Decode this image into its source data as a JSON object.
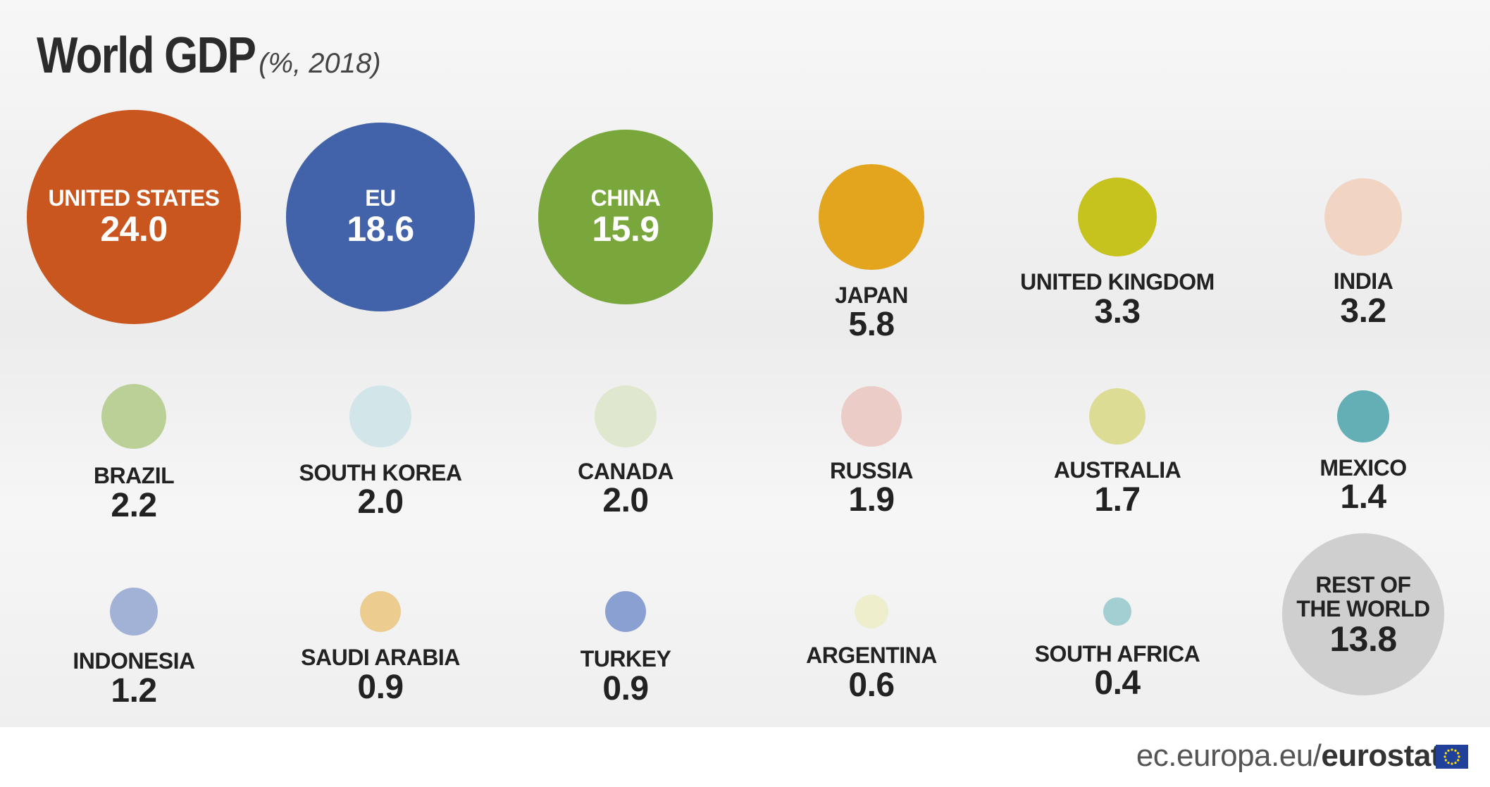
{
  "header": {
    "title": "World GDP",
    "subtitle": "(%, 2018)"
  },
  "footer": {
    "site": "ec.europa.eu/",
    "brand": "eurostat",
    "flag_icon": "eu-flag-icon"
  },
  "chart_data": {
    "type": "bubble",
    "title": "World GDP",
    "subtitle": "(%, 2018)",
    "unit": "%",
    "year": 2018,
    "countries": [
      {
        "name": "UNITED STATES",
        "value": 24.0,
        "display": "24.0",
        "color": "#c8561e",
        "label_inside": true
      },
      {
        "name": "EU",
        "value": 18.6,
        "display": "18.6",
        "color": "#4262a9",
        "label_inside": true
      },
      {
        "name": "CHINA",
        "value": 15.9,
        "display": "15.9",
        "color": "#7aa73c",
        "label_inside": true
      },
      {
        "name": "JAPAN",
        "value": 5.8,
        "display": "5.8",
        "color": "#e3a41e"
      },
      {
        "name": "UNITED KINGDOM",
        "value": 3.3,
        "display": "3.3",
        "color": "#c6c31f"
      },
      {
        "name": "INDIA",
        "value": 3.2,
        "display": "3.2",
        "color": "#f1d5c2"
      },
      {
        "name": "BRAZIL",
        "value": 2.2,
        "display": "2.2",
        "color": "#bad097"
      },
      {
        "name": "SOUTH KOREA",
        "value": 2.0,
        "display": "2.0",
        "color": "#d2e6e9"
      },
      {
        "name": "CANADA",
        "value": 2.0,
        "display": "2.0",
        "color": "#dfe8cf"
      },
      {
        "name": "RUSSIA",
        "value": 1.9,
        "display": "1.9",
        "color": "#ecccc7"
      },
      {
        "name": "AUSTRALIA",
        "value": 1.7,
        "display": "1.7",
        "color": "#dcdc94"
      },
      {
        "name": "MEXICO",
        "value": 1.4,
        "display": "1.4",
        "color": "#63afb5"
      },
      {
        "name": "INDONESIA",
        "value": 1.2,
        "display": "1.2",
        "color": "#a2b1d6"
      },
      {
        "name": "SAUDI ARABIA",
        "value": 0.9,
        "display": "0.9",
        "color": "#edcc8f"
      },
      {
        "name": "TURKEY",
        "value": 0.9,
        "display": "0.9",
        "color": "#8aa0d3"
      },
      {
        "name": "ARGENTINA",
        "value": 0.6,
        "display": "0.6",
        "color": "#eeeecd"
      },
      {
        "name": "SOUTH AFRICA",
        "value": 0.4,
        "display": "0.4",
        "color": "#a3cfd2"
      },
      {
        "name": "REST OF THE WORLD",
        "name_lines": [
          "REST OF",
          "THE WORLD"
        ],
        "value": 13.8,
        "display": "13.8",
        "color": "#cfcfcf",
        "label_inside": true
      }
    ]
  }
}
